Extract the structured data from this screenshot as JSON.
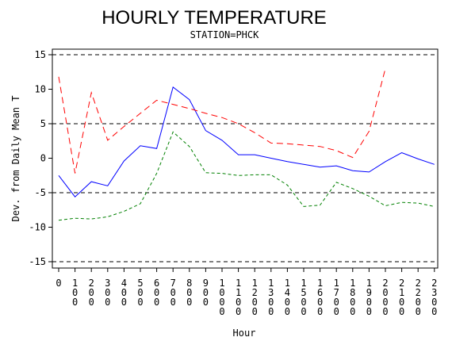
{
  "chart_data": {
    "type": "line",
    "title": "HOURLY TEMPERATURE",
    "subtitle": "STATION=PHCK",
    "xlabel": "Hour",
    "ylabel": "Dev. from Daily Mean T",
    "ylim": [
      -15,
      15
    ],
    "yticks": [
      "15",
      "10",
      "5",
      "0",
      "-5",
      "-10",
      "-15"
    ],
    "reference_lines": [
      15,
      5,
      -5,
      -15
    ],
    "x": [
      0,
      100,
      200,
      300,
      400,
      500,
      600,
      700,
      800,
      900,
      1000,
      1100,
      1200,
      1300,
      1400,
      1500,
      1600,
      1700,
      1800,
      1900,
      2000,
      2100,
      2200,
      2300
    ],
    "xticklabels": [
      "0",
      "100",
      "200",
      "300",
      "400",
      "500",
      "600",
      "700",
      "800",
      "900",
      "1000",
      "1100",
      "1200",
      "1300",
      "1400",
      "1500",
      "1600",
      "1700",
      "1800",
      "1900",
      "2000",
      "2100",
      "2200",
      "2300"
    ],
    "series": [
      {
        "color": "#0000ff",
        "dash": "solid",
        "values": [
          -2.5,
          -5.6,
          -3.4,
          -4.0,
          -0.4,
          1.8,
          1.4,
          10.3,
          8.5,
          4.0,
          2.6,
          0.5,
          0.5,
          0.0,
          -0.5,
          -0.9,
          -1.3,
          -1.1,
          -1.8,
          -2.0,
          -0.5,
          0.8,
          -0.1,
          -0.9
        ]
      },
      {
        "color": "#ff0000",
        "dash": "long",
        "values": [
          11.8,
          -2.2,
          9.5,
          2.6,
          4.6,
          6.5,
          8.4,
          7.8,
          7.2,
          6.5,
          5.9,
          5.0,
          3.7,
          2.2,
          2.1,
          1.9,
          1.7,
          1.1,
          0.1,
          3.9,
          13.0,
          null,
          null,
          null
        ]
      },
      {
        "color": "#008000",
        "dash": "short",
        "values": [
          -9.0,
          -8.7,
          -8.8,
          -8.5,
          -7.7,
          -6.6,
          -2.2,
          3.8,
          1.7,
          -2.1,
          -2.2,
          -2.5,
          -2.4,
          -2.4,
          -3.9,
          -7.0,
          -6.8,
          -3.5,
          -4.4,
          -5.5,
          -6.9,
          -6.4,
          -6.5,
          -7.0
        ]
      }
    ],
    "grid": false,
    "legend": "none"
  }
}
